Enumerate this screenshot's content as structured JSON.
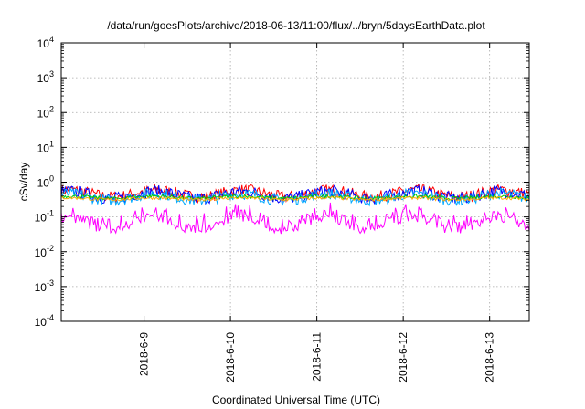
{
  "chart_data": {
    "type": "line",
    "title": "/data/run/goesPlots/archive/2018-06-13/11:00/flux/../bryn/5daysEarthData.plot",
    "xlabel": "Coordinated Universal Time (UTC)",
    "ylabel": "cSv/day",
    "yscale": "log",
    "ylim": [
      0.0001,
      10000
    ],
    "ytick_exponents": [
      "4",
      "3",
      "2",
      "1",
      "0",
      "-1",
      "-2",
      "-3",
      "-4"
    ],
    "xlim": [
      "2018-06-08 01:00",
      "2018-06-13 11:00"
    ],
    "xticks": [
      {
        "date": "2018-06-09 00:00",
        "label": "2018-6-9"
      },
      {
        "date": "2018-06-10 00:00",
        "label": "2018-6-10"
      },
      {
        "date": "2018-06-11 00:00",
        "label": "2018-6-11"
      },
      {
        "date": "2018-06-12 00:00",
        "label": "2018-6-12"
      },
      {
        "date": "2018-06-13 00:00",
        "label": "2018-6-13"
      }
    ],
    "grid": true,
    "legend": "none",
    "approx_envelope": [
      {
        "color": "#ff0000",
        "min": 0.25,
        "max": 0.9
      },
      {
        "color": "#0000ff",
        "min": 0.22,
        "max": 0.85
      },
      {
        "color": "#00aaff",
        "min": 0.2,
        "max": 0.7
      },
      {
        "color": "#00cc00",
        "min": 0.3,
        "max": 0.45
      },
      {
        "color": "#ffaa00",
        "min": 0.28,
        "max": 0.4
      },
      {
        "color": "#ff00ff",
        "min": 0.03,
        "max": 0.3
      }
    ]
  }
}
